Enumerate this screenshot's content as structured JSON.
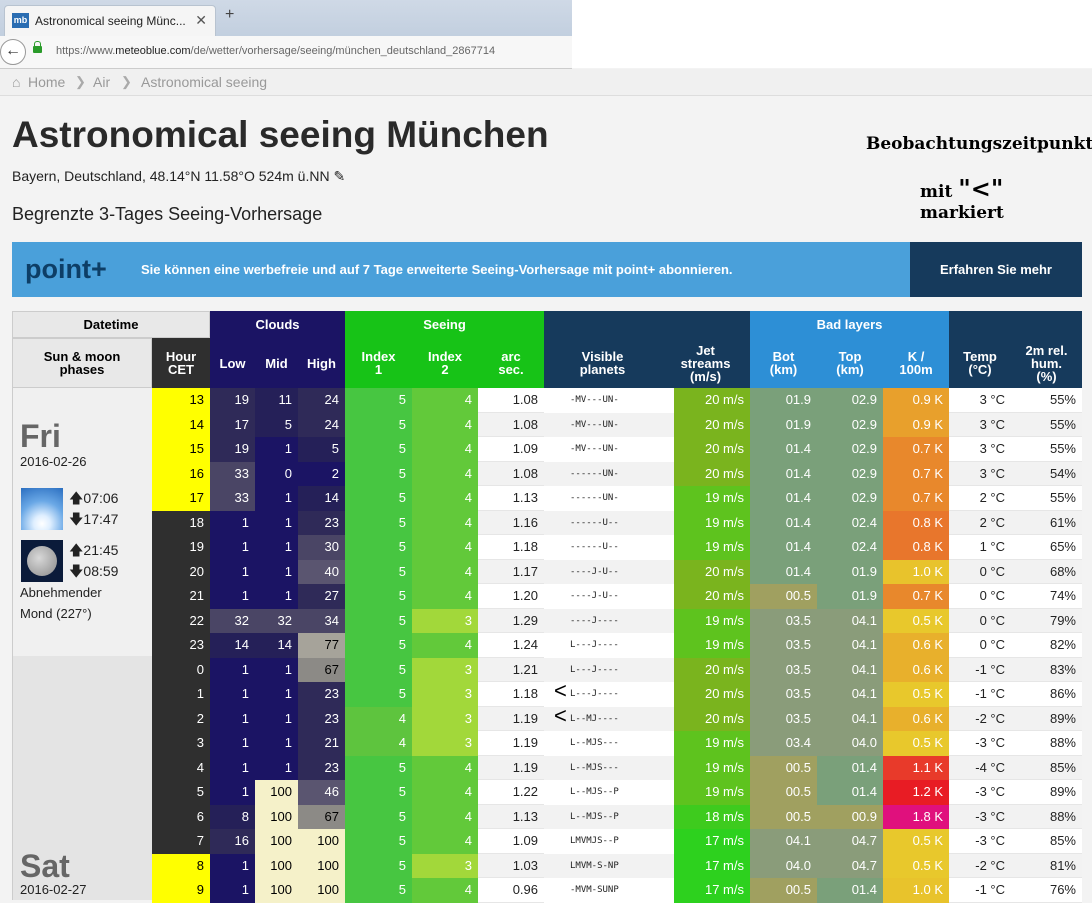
{
  "browser": {
    "tab_title": "Astronomical seeing Münc...",
    "tab_close": "✕",
    "new_tab": "+",
    "favicon": "mb",
    "url_prefix": "https://www.",
    "url_domain": "meteoblue.com",
    "url_path": "/de/wetter/vorhersage/seeing/münchen_deutschland_2867714"
  },
  "breadcrumb": {
    "home": "Home",
    "air": "Air",
    "current": "Astronomical seeing"
  },
  "page": {
    "title": "Astronomical seeing München",
    "location": "Bayern, Deutschland, 48.14°N 11.58°O 524m ü.NN",
    "subtitle": "Begrenzte 3-Tages Seeing-Vorhersage",
    "note_line1": "Beobachtungszeitpunkt",
    "note_line2_a": "mit",
    "note_line2_sym": "\"<\"",
    "note_line2_b": "markiert"
  },
  "banner": {
    "logo": "point+",
    "text": "Sie können eine werbefreie und auf 7 Tage erweiterte Seeing-Vorhersage mit point+ abonnieren.",
    "button": "Erfahren Sie mehr"
  },
  "headers": {
    "datetime": "Datetime",
    "sunmoon": "Sun & moon phases",
    "hour": "Hour CET",
    "clouds": "Clouds",
    "low": "Low",
    "mid": "Mid",
    "high": "High",
    "seeing": "Seeing",
    "index1": "Index 1",
    "index2": "Index 2",
    "arc": "arc sec.",
    "planets": "Visible planets",
    "jet": "Jet streams (m/s)",
    "badlayers": "Bad layers",
    "bot": "Bot (km)",
    "top": "Top (km)",
    "k100": "K / 100m",
    "temp": "Temp (°C)",
    "hum": "2m rel. hum. (%)"
  },
  "days": [
    {
      "name": "Fri",
      "date": "2016-02-26",
      "sunrise": "07:06",
      "sunset": "17:47",
      "moonrise": "21:45",
      "moonset": "08:59",
      "moon_phase": "Abnehmender",
      "moon_phase2": "Mond (227°)"
    },
    {
      "name": "Sat",
      "date": "2016-02-27"
    }
  ],
  "marker_symbol": "<",
  "rows": [
    {
      "hour": "13",
      "low": "19",
      "mid": "11",
      "high": "24",
      "i1": "5",
      "i2": "4",
      "arc": "1.08",
      "pl": "-MV---UN-",
      "jet": "20 m/s",
      "bot": "01.9",
      "top": "02.9",
      "k": "0.9 K",
      "temp": "3 °C",
      "hum": "55%"
    },
    {
      "hour": "14",
      "low": "17",
      "mid": "5",
      "high": "24",
      "i1": "5",
      "i2": "4",
      "arc": "1.08",
      "pl": "-MV---UN-",
      "jet": "20 m/s",
      "bot": "01.9",
      "top": "02.9",
      "k": "0.9 K",
      "temp": "3 °C",
      "hum": "55%"
    },
    {
      "hour": "15",
      "low": "19",
      "mid": "1",
      "high": "5",
      "i1": "5",
      "i2": "4",
      "arc": "1.09",
      "pl": "-MV---UN-",
      "jet": "20 m/s",
      "bot": "01.4",
      "top": "02.9",
      "k": "0.7 K",
      "temp": "3 °C",
      "hum": "55%"
    },
    {
      "hour": "16",
      "low": "33",
      "mid": "0",
      "high": "2",
      "i1": "5",
      "i2": "4",
      "arc": "1.08",
      "pl": "------UN-",
      "jet": "20 m/s",
      "bot": "01.4",
      "top": "02.9",
      "k": "0.7 K",
      "temp": "3 °C",
      "hum": "54%"
    },
    {
      "hour": "17",
      "low": "33",
      "mid": "1",
      "high": "14",
      "i1": "5",
      "i2": "4",
      "arc": "1.13",
      "pl": "------UN-",
      "jet": "19 m/s",
      "bot": "01.4",
      "top": "02.9",
      "k": "0.7 K",
      "temp": "2 °C",
      "hum": "55%"
    },
    {
      "hour": "18",
      "low": "1",
      "mid": "1",
      "high": "23",
      "i1": "5",
      "i2": "4",
      "arc": "1.16",
      "pl": "------U--",
      "jet": "19 m/s",
      "bot": "01.4",
      "top": "02.4",
      "k": "0.8 K",
      "temp": "2 °C",
      "hum": "61%"
    },
    {
      "hour": "19",
      "low": "1",
      "mid": "1",
      "high": "30",
      "i1": "5",
      "i2": "4",
      "arc": "1.18",
      "pl": "------U--",
      "jet": "19 m/s",
      "bot": "01.4",
      "top": "02.4",
      "k": "0.8 K",
      "temp": "1 °C",
      "hum": "65%"
    },
    {
      "hour": "20",
      "low": "1",
      "mid": "1",
      "high": "40",
      "i1": "5",
      "i2": "4",
      "arc": "1.17",
      "pl": "----J-U--",
      "jet": "20 m/s",
      "bot": "01.4",
      "top": "01.9",
      "k": "1.0 K",
      "temp": "0 °C",
      "hum": "68%"
    },
    {
      "hour": "21",
      "low": "1",
      "mid": "1",
      "high": "27",
      "i1": "5",
      "i2": "4",
      "arc": "1.20",
      "pl": "----J-U--",
      "jet": "20 m/s",
      "bot": "00.5",
      "top": "01.9",
      "k": "0.7 K",
      "temp": "0 °C",
      "hum": "74%"
    },
    {
      "hour": "22",
      "low": "32",
      "mid": "32",
      "high": "34",
      "i1": "5",
      "i2": "3",
      "arc": "1.29",
      "pl": "----J----",
      "jet": "19 m/s",
      "bot": "03.5",
      "top": "04.1",
      "k": "0.5 K",
      "temp": "0 °C",
      "hum": "79%"
    },
    {
      "hour": "23",
      "low": "14",
      "mid": "14",
      "high": "77",
      "i1": "5",
      "i2": "4",
      "arc": "1.24",
      "pl": "L---J----",
      "jet": "19 m/s",
      "bot": "03.5",
      "top": "04.1",
      "k": "0.6 K",
      "temp": "0 °C",
      "hum": "82%"
    },
    {
      "hour": "0",
      "low": "1",
      "mid": "1",
      "high": "67",
      "i1": "5",
      "i2": "3",
      "arc": "1.21",
      "pl": "L---J----",
      "jet": "20 m/s",
      "bot": "03.5",
      "top": "04.1",
      "k": "0.6 K",
      "temp": "-1 °C",
      "hum": "83%"
    },
    {
      "hour": "1",
      "low": "1",
      "mid": "1",
      "high": "23",
      "i1": "5",
      "i2": "3",
      "arc": "1.18",
      "pl": "L---J----",
      "jet": "20 m/s",
      "bot": "03.5",
      "top": "04.1",
      "k": "0.5 K",
      "temp": "-1 °C",
      "hum": "86%",
      "mark": true
    },
    {
      "hour": "2",
      "low": "1",
      "mid": "1",
      "high": "23",
      "i1": "4",
      "i2": "3",
      "arc": "1.19",
      "pl": "L--MJ----",
      "jet": "20 m/s",
      "bot": "03.5",
      "top": "04.1",
      "k": "0.6 K",
      "temp": "-2 °C",
      "hum": "89%",
      "mark": true
    },
    {
      "hour": "3",
      "low": "1",
      "mid": "1",
      "high": "21",
      "i1": "4",
      "i2": "3",
      "arc": "1.19",
      "pl": "L--MJS---",
      "jet": "19 m/s",
      "bot": "03.4",
      "top": "04.0",
      "k": "0.5 K",
      "temp": "-3 °C",
      "hum": "88%"
    },
    {
      "hour": "4",
      "low": "1",
      "mid": "1",
      "high": "23",
      "i1": "5",
      "i2": "4",
      "arc": "1.19",
      "pl": "L--MJS---",
      "jet": "19 m/s",
      "bot": "00.5",
      "top": "01.4",
      "k": "1.1 K",
      "temp": "-4 °C",
      "hum": "85%"
    },
    {
      "hour": "5",
      "low": "1",
      "mid": "100",
      "high": "46",
      "i1": "5",
      "i2": "4",
      "arc": "1.22",
      "pl": "L--MJS--P",
      "jet": "19 m/s",
      "bot": "00.5",
      "top": "01.4",
      "k": "1.2 K",
      "temp": "-3 °C",
      "hum": "89%"
    },
    {
      "hour": "6",
      "low": "8",
      "mid": "100",
      "high": "67",
      "i1": "5",
      "i2": "4",
      "arc": "1.13",
      "pl": "L--MJS--P",
      "jet": "18 m/s",
      "bot": "00.5",
      "top": "00.9",
      "k": "1.8 K",
      "temp": "-3 °C",
      "hum": "88%"
    },
    {
      "hour": "7",
      "low": "16",
      "mid": "100",
      "high": "100",
      "i1": "5",
      "i2": "4",
      "arc": "1.09",
      "pl": "LMVMJS--P",
      "jet": "17 m/s",
      "bot": "04.1",
      "top": "04.7",
      "k": "0.5 K",
      "temp": "-3 °C",
      "hum": "85%"
    },
    {
      "hour": "8",
      "low": "1",
      "mid": "100",
      "high": "100",
      "i1": "5",
      "i2": "3",
      "arc": "1.03",
      "pl": "LMVM-S-NP",
      "jet": "17 m/s",
      "bot": "04.0",
      "top": "04.7",
      "k": "0.5 K",
      "temp": "-2 °C",
      "hum": "81%"
    },
    {
      "hour": "9",
      "low": "1",
      "mid": "100",
      "high": "100",
      "i1": "5",
      "i2": "4",
      "arc": "0.96",
      "pl": "-MVM-SUNP",
      "jet": "17 m/s",
      "bot": "00.5",
      "top": "01.4",
      "k": "1.0 K",
      "temp": "-1 °C",
      "hum": "76%"
    }
  ],
  "colors": {
    "hour_day": "#ffff00",
    "hour_night": "#2f2f2f",
    "clouds_header": "#1b1464",
    "seeing_header": "#17c317",
    "planets_header": "#163a5c",
    "badlayers_header": "#2d8fd6",
    "k_orange": "#e8762c",
    "k_red": "#e81c24",
    "k_magenta": "#e0107d"
  }
}
